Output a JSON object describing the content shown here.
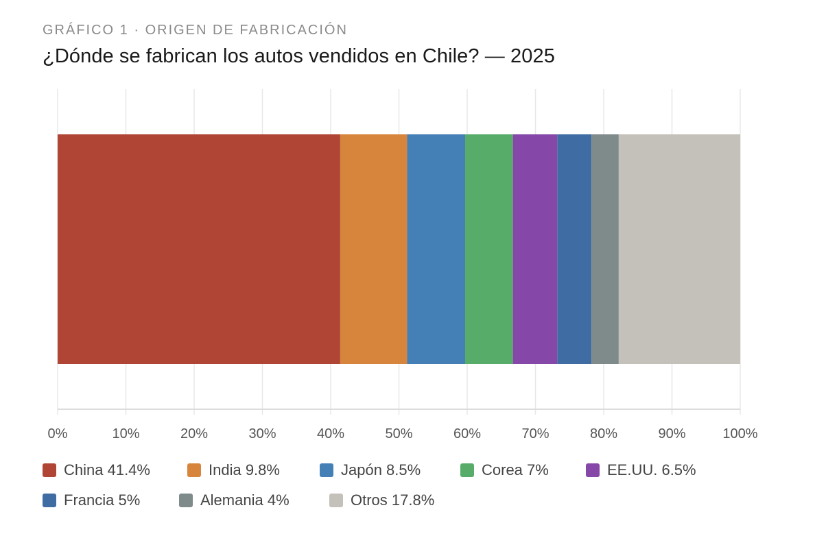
{
  "header": {
    "eyebrow": "GRÁFICO 1 · ORIGEN DE FABRICACIÓN",
    "title": "¿Dónde se fabrican los autos vendidos en Chile? — 2025"
  },
  "chart_data": {
    "type": "bar",
    "orientation": "horizontal",
    "stacked": true,
    "title": "¿Dónde se fabrican los autos vendidos en Chile? — 2025",
    "xlabel": "",
    "ylabel": "",
    "xlim": [
      0,
      100
    ],
    "x_ticks": [
      "0%",
      "10%",
      "20%",
      "30%",
      "40%",
      "50%",
      "60%",
      "70%",
      "80%",
      "90%",
      "100%"
    ],
    "grid": true,
    "legend_position": "bottom",
    "series": [
      {
        "name": "China",
        "value": 41.4,
        "color": "#b04535"
      },
      {
        "name": "India",
        "value": 9.8,
        "color": "#d7853c"
      },
      {
        "name": "Japón",
        "value": 8.5,
        "color": "#447fb6"
      },
      {
        "name": "Corea",
        "value": 7,
        "color": "#57ac69"
      },
      {
        "name": "EE.UU.",
        "value": 6.5,
        "color": "#8648a8"
      },
      {
        "name": "Francia",
        "value": 5,
        "color": "#3f6ca3"
      },
      {
        "name": "Alemania",
        "value": 4,
        "color": "#7f8a8b"
      },
      {
        "name": "Otros",
        "value": 17.8,
        "color": "#c4c0ba"
      }
    ]
  },
  "legend": {
    "items": [
      "China 41.4%",
      "India 9.8%",
      "Japón 8.5%",
      "Corea 7%",
      "EE.UU. 6.5%",
      "Francia 5%",
      "Alemania 4%",
      "Otros 17.8%"
    ]
  }
}
